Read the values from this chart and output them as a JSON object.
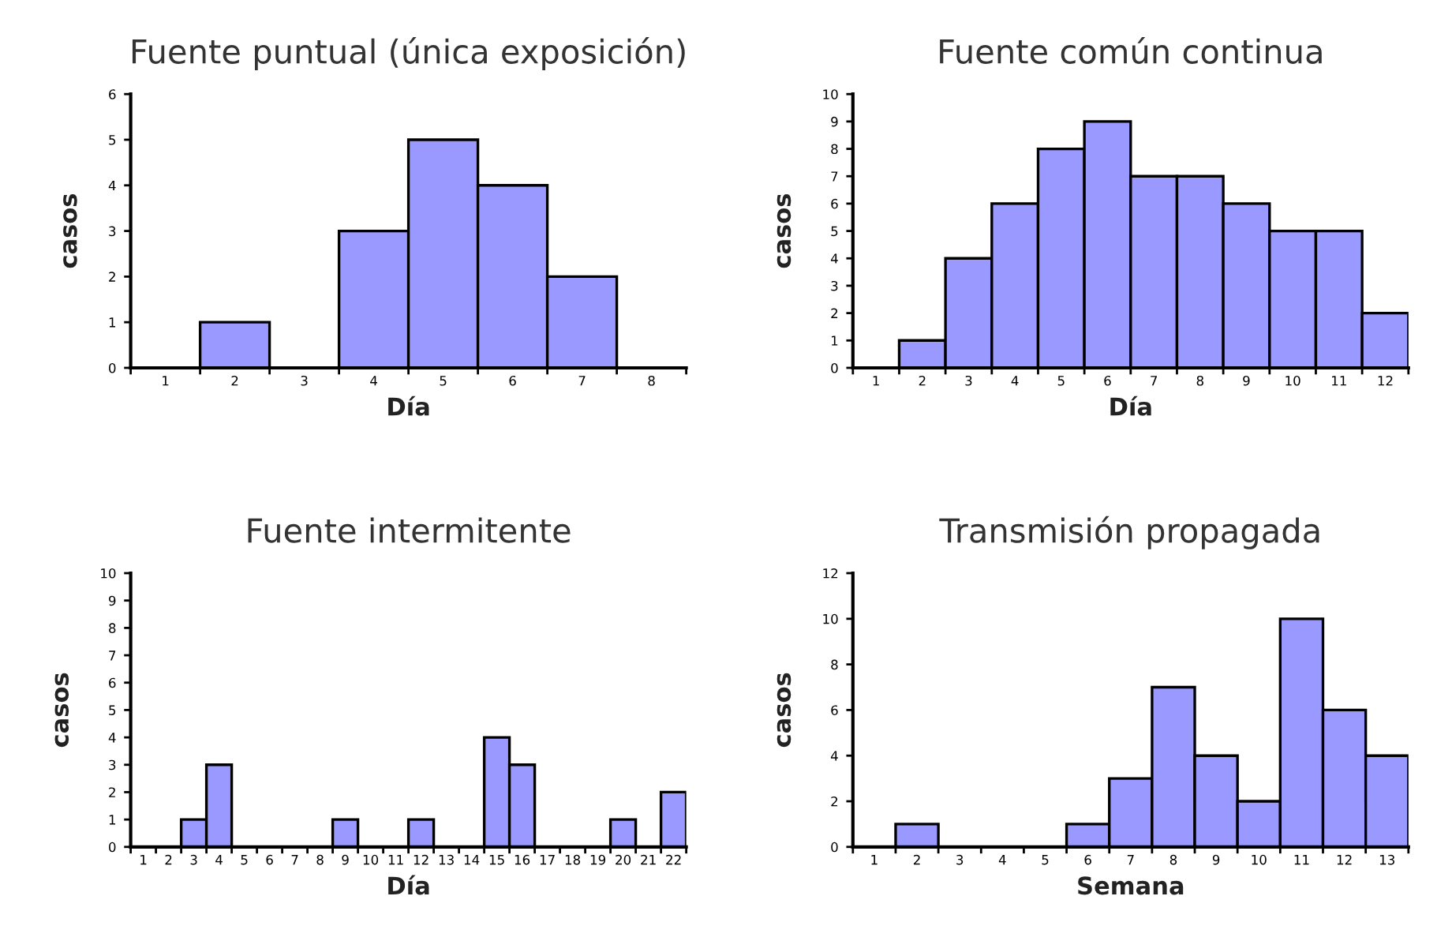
{
  "chart_data": [
    {
      "type": "bar",
      "title": "Fuente puntual (única exposición)",
      "xlabel": "Día",
      "ylabel": "casos",
      "categories": [
        "1",
        "2",
        "3",
        "4",
        "5",
        "6",
        "7",
        "8"
      ],
      "values": [
        0,
        1,
        0,
        3,
        5,
        4,
        2,
        0
      ],
      "color": "#9999ff",
      "ylim": [
        0,
        6
      ],
      "yticks": [
        0,
        1,
        2,
        3,
        4,
        5,
        6
      ],
      "grid": false
    },
    {
      "type": "bar",
      "title": "Fuente común continua",
      "xlabel": "Día",
      "ylabel": "casos",
      "categories": [
        "1",
        "2",
        "3",
        "4",
        "5",
        "6",
        "7",
        "8",
        "9",
        "10",
        "11",
        "12"
      ],
      "values": [
        0,
        1,
        4,
        6,
        8,
        9,
        7,
        7,
        6,
        5,
        5,
        2
      ],
      "color": "#9999ff",
      "ylim": [
        0,
        10
      ],
      "yticks": [
        0,
        1,
        2,
        3,
        4,
        5,
        6,
        7,
        8,
        9,
        10
      ],
      "grid": false
    },
    {
      "type": "bar",
      "title": "Fuente intermitente",
      "xlabel": "Día",
      "ylabel": "casos",
      "categories": [
        "1",
        "2",
        "3",
        "4",
        "5",
        "6",
        "7",
        "8",
        "9",
        "10",
        "11",
        "12",
        "13",
        "14",
        "15",
        "16",
        "17",
        "18",
        "19",
        "20",
        "21",
        "22"
      ],
      "values": [
        0,
        0,
        1,
        3,
        0,
        0,
        0,
        0,
        1,
        0,
        0,
        1,
        0,
        0,
        4,
        3,
        0,
        0,
        0,
        1,
        0,
        2
      ],
      "color": "#9999ff",
      "ylim": [
        0,
        10
      ],
      "yticks": [
        0,
        1,
        2,
        3,
        4,
        5,
        6,
        7,
        8,
        9,
        10
      ],
      "grid": false
    },
    {
      "type": "bar",
      "title": "Transmisión propagada",
      "xlabel": "Semana",
      "ylabel": "casos",
      "categories": [
        "1",
        "2",
        "3",
        "4",
        "5",
        "6",
        "7",
        "8",
        "9",
        "10",
        "11",
        "12",
        "13"
      ],
      "values": [
        0,
        1,
        0,
        0,
        0,
        1,
        3,
        7,
        4,
        2,
        10,
        6,
        4
      ],
      "color": "#9999ff",
      "ylim": [
        0,
        12
      ],
      "yticks": [
        0,
        2,
        4,
        6,
        8,
        10,
        12
      ],
      "grid": false
    }
  ]
}
